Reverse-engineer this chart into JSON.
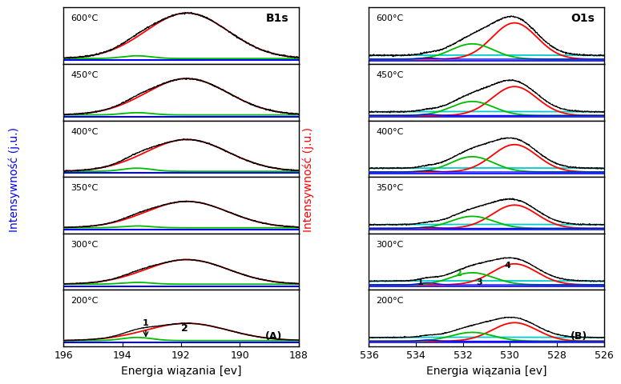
{
  "panel_A": {
    "title": "B1s",
    "xlabel": "Energia wiązania [ev]",
    "ylabel": "Intensywność (j.u.)",
    "xmin": 196,
    "xmax": 188,
    "temperatures": [
      "600°C",
      "450°C",
      "400°C",
      "350°C",
      "300°C",
      "200°C"
    ],
    "label": "(A)",
    "peaks_red_center": [
      191.8,
      191.8,
      191.8,
      191.8,
      191.8,
      191.8
    ],
    "peaks_red_sigma": [
      1.4,
      1.4,
      1.4,
      1.4,
      1.4,
      1.4
    ],
    "peaks_red_amp": [
      1.0,
      0.8,
      0.7,
      0.58,
      0.54,
      0.38
    ],
    "peaks_green_center": [
      193.5,
      193.5,
      193.5,
      193.5,
      193.5,
      193.5
    ],
    "peaks_green_sigma": [
      0.5,
      0.5,
      0.5,
      0.5,
      0.5,
      0.5
    ],
    "peaks_green_amp": [
      0.06,
      0.05,
      0.07,
      0.04,
      0.04,
      0.07
    ]
  },
  "panel_B": {
    "title": "O1s",
    "xlabel": "Energia wiązania [ev]",
    "ylabel": "Intensywność (j.u.)",
    "xmin": 536,
    "xmax": 526,
    "temperatures": [
      "600°C",
      "450°C",
      "400°C",
      "350°C",
      "300°C",
      "200°C"
    ],
    "label": "(B)",
    "peaks_red_center": [
      529.8,
      529.8,
      529.8,
      529.8,
      529.8,
      529.8
    ],
    "peaks_red_sigma": [
      0.95,
      0.95,
      0.95,
      0.95,
      0.95,
      0.95
    ],
    "peaks_red_amp": [
      0.9,
      0.72,
      0.68,
      0.58,
      0.52,
      0.46
    ],
    "peaks_green_center": [
      531.6,
      531.6,
      531.6,
      531.6,
      531.6,
      531.6
    ],
    "peaks_green_sigma": [
      0.9,
      0.9,
      0.9,
      0.9,
      0.9,
      0.9
    ],
    "peaks_green_amp": [
      0.38,
      0.35,
      0.38,
      0.3,
      0.3,
      0.22
    ],
    "peaks_blue_center": [
      533.5,
      533.5,
      533.5,
      533.5,
      533.5,
      533.5
    ],
    "peaks_blue_sigma": [
      0.35,
      0.35,
      0.35,
      0.35,
      0.35,
      0.35
    ],
    "peaks_blue_amp": [
      0.03,
      0.03,
      0.03,
      0.03,
      0.05,
      0.03
    ],
    "peaks_cyan_center": [
      531.0,
      531.0,
      531.0,
      531.0,
      531.0,
      531.0
    ],
    "peaks_cyan_sigma": [
      12.0,
      12.0,
      12.0,
      12.0,
      12.0,
      12.0
    ],
    "peaks_cyan_amp": [
      0.1,
      0.1,
      0.1,
      0.1,
      0.1,
      0.1
    ]
  },
  "colors": {
    "black": "#000000",
    "red": "#ff0000",
    "green": "#00bb00",
    "blue": "#0000ff",
    "cyan": "#00cccc",
    "background": "#ffffff"
  },
  "noise_level": 0.008
}
